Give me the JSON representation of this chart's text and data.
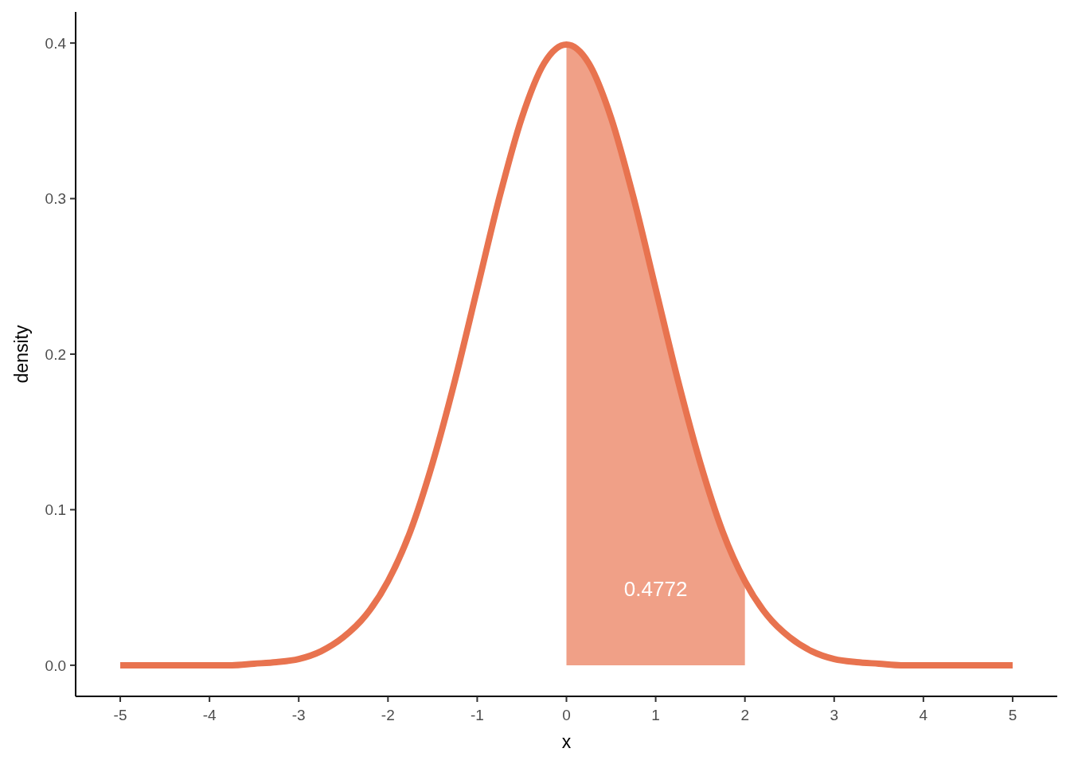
{
  "chart_data": {
    "type": "line",
    "xlabel": "x",
    "ylabel": "density",
    "xlim": [
      -5.5,
      5.5
    ],
    "ylim": [
      -0.02,
      0.42
    ],
    "xticks": [
      -5,
      -4,
      -3,
      -2,
      -1,
      0,
      1,
      2,
      3,
      4,
      5
    ],
    "yticks": [
      {
        "value": 0,
        "label": "0.0"
      },
      0.1,
      0.2,
      0.3,
      0.4
    ],
    "series": [
      {
        "type": "area",
        "color": "#f0a087",
        "x": [
          0,
          0.25,
          0.5,
          0.75,
          1,
          1.25,
          1.5,
          1.75,
          2
        ],
        "values": [
          0.399,
          0.387,
          0.352,
          0.301,
          0.242,
          0.183,
          0.13,
          0.086,
          0.054
        ]
      },
      {
        "color": "#e8734f",
        "x": [
          -5,
          -4.75,
          -4.5,
          -4.25,
          -4,
          -3.75,
          -3.5,
          -3.25,
          -3,
          -2.75,
          -2.5,
          -2.25,
          -2,
          -1.75,
          -1.5,
          -1.25,
          -1,
          -0.75,
          -0.5,
          -0.25,
          0,
          0.25,
          0.5,
          0.75,
          1,
          1.25,
          1.5,
          1.75,
          2,
          2.25,
          2.5,
          2.75,
          3,
          3.25,
          3.5,
          3.75,
          4,
          4.25,
          4.5,
          4.75,
          5
        ],
        "values": [
          0,
          0,
          0,
          0,
          0,
          0,
          0.001,
          0.002,
          0.004,
          0.009,
          0.018,
          0.032,
          0.054,
          0.086,
          0.13,
          0.183,
          0.242,
          0.301,
          0.352,
          0.387,
          0.399,
          0.387,
          0.352,
          0.301,
          0.242,
          0.183,
          0.13,
          0.086,
          0.054,
          0.032,
          0.018,
          0.009,
          0.004,
          0.002,
          0.001,
          0,
          0,
          0,
          0,
          0,
          0
        ]
      }
    ],
    "annotations": [
      "0.4772"
    ]
  }
}
